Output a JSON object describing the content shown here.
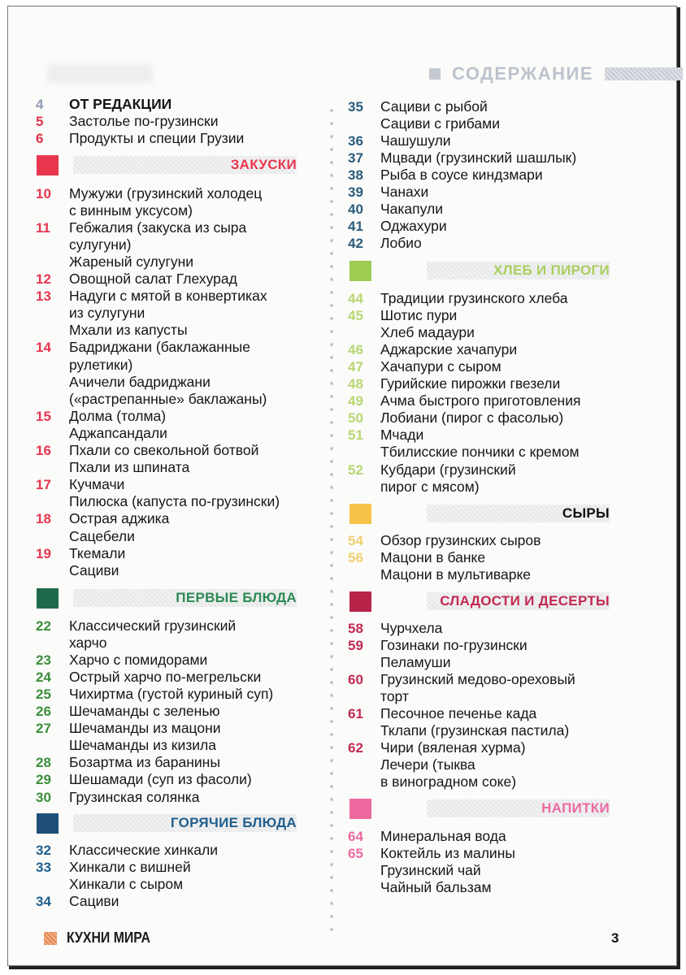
{
  "header": {
    "title": "СОДЕРЖАНИЕ"
  },
  "intro": [
    {
      "page": "4",
      "color": "#8e9bb0",
      "title": [
        "ОТ РЕДАКЦИИ"
      ],
      "bold": true
    },
    {
      "page": "5",
      "color": "#e2334a",
      "title": [
        "Застолье по-грузински"
      ]
    },
    {
      "page": "6",
      "color": "#e2334a",
      "title": [
        "Продукты и специи Грузии"
      ]
    }
  ],
  "left_sections": [
    {
      "heading": "ЗАКУСКИ",
      "color": "#e8364f",
      "heading_color": "#e8364f",
      "entries": [
        {
          "page": "10",
          "title": [
            "Мужужи (грузинский холодец",
            "с винным уксусом)"
          ]
        },
        {
          "page": "11",
          "title": [
            "Гебжалия (закуска из сыра",
            "сулугуни)"
          ]
        },
        {
          "page": "",
          "title": [
            "Жареный сулугуни"
          ]
        },
        {
          "page": "12",
          "title": [
            "Овощной салат Глехурад"
          ]
        },
        {
          "page": "13",
          "title": [
            "Надуги с мятой в конвертиках",
            "из сулугуни"
          ]
        },
        {
          "page": "",
          "title": [
            "Мхали из капусты"
          ]
        },
        {
          "page": "14",
          "title": [
            "Бадриджани (баклажанные",
            "рулетики)"
          ]
        },
        {
          "page": "",
          "title": [
            "Ачичели бадриджани",
            "(«растрепанные» баклажаны)"
          ]
        },
        {
          "page": "15",
          "title": [
            "Долма (толма)"
          ]
        },
        {
          "page": "",
          "title": [
            "Аджапсандали"
          ]
        },
        {
          "page": "16",
          "title": [
            "Пхали со свекольной ботвой"
          ]
        },
        {
          "page": "",
          "title": [
            "Пхали из шпината"
          ]
        },
        {
          "page": "17",
          "title": [
            "Кучмачи"
          ]
        },
        {
          "page": "",
          "title": [
            "Пилюска (капуста по-грузински)"
          ]
        },
        {
          "page": "18",
          "title": [
            "Острая аджика"
          ]
        },
        {
          "page": "",
          "title": [
            "Сацебели"
          ]
        },
        {
          "page": "19",
          "title": [
            "Ткемали"
          ]
        },
        {
          "page": "",
          "title": [
            "Сациви"
          ]
        }
      ]
    },
    {
      "heading": "ПЕРВЫЕ БЛЮДА",
      "color": "#1f6a4a",
      "heading_color": "#2d8a55",
      "num_color": "#3a8e3a",
      "entries": [
        {
          "page": "22",
          "title": [
            "Классический грузинский",
            "харчо"
          ]
        },
        {
          "page": "23",
          "title": [
            "Харчо с помидорами"
          ]
        },
        {
          "page": "24",
          "title": [
            "Острый харчо по-мегрельски"
          ]
        },
        {
          "page": "25",
          "title": [
            "Чихиртма (густой куриный суп)"
          ]
        },
        {
          "page": "26",
          "title": [
            "Шечаманды с зеленью"
          ]
        },
        {
          "page": "27",
          "title": [
            "Шечаманды из мацони"
          ]
        },
        {
          "page": "",
          "title": [
            "Шечаманды из кизила"
          ]
        },
        {
          "page": "28",
          "title": [
            "Бозартма из баранины"
          ]
        },
        {
          "page": "29",
          "title": [
            "Шешамади (суп из фасоли)"
          ]
        },
        {
          "page": "30",
          "title": [
            "Грузинская солянка"
          ]
        }
      ]
    },
    {
      "heading": "ГОРЯЧИЕ БЛЮДА",
      "color": "#1d4f78",
      "heading_color": "#1f5f8e",
      "num_color": "#1f5f8e",
      "entries": [
        {
          "page": "32",
          "title": [
            "Классические хинкали"
          ]
        },
        {
          "page": "33",
          "title": [
            "Хинкали с вишней"
          ]
        },
        {
          "page": "",
          "title": [
            "Хинкали с сыром"
          ]
        },
        {
          "page": "34",
          "title": [
            "Сациви"
          ]
        }
      ]
    }
  ],
  "right_continued": {
    "num_color": "#2b5c7c",
    "entries": [
      {
        "page": "35",
        "title": [
          "Сациви с рыбой"
        ]
      },
      {
        "page": "",
        "title": [
          "Сациви с грибами"
        ]
      },
      {
        "page": "36",
        "title": [
          "Чашушули"
        ]
      },
      {
        "page": "37",
        "title": [
          "Мцвади (грузинский шашлык)"
        ]
      },
      {
        "page": "38",
        "title": [
          "Рыба в соусе киндзмари"
        ]
      },
      {
        "page": "39",
        "title": [
          "Чанахи"
        ]
      },
      {
        "page": "40",
        "title": [
          "Чакапули"
        ]
      },
      {
        "page": "41",
        "title": [
          "Оджахури"
        ]
      },
      {
        "page": "42",
        "title": [
          "Лобио"
        ]
      }
    ]
  },
  "right_sections": [
    {
      "heading": "ХЛЕБ И ПИРОГИ",
      "color": "#9ccc52",
      "heading_color": "#a9cf5f",
      "num_color": "#b8d773",
      "entries": [
        {
          "page": "44",
          "title": [
            "Традиции грузинского хлеба"
          ]
        },
        {
          "page": "45",
          "title": [
            "Шотис пури"
          ]
        },
        {
          "page": "",
          "title": [
            "Хлеб мадаури"
          ]
        },
        {
          "page": "46",
          "title": [
            "Аджарские хачапури"
          ]
        },
        {
          "page": "47",
          "title": [
            "Хачапури с сыром"
          ]
        },
        {
          "page": "48",
          "title": [
            "Гурийские пирожки гвезели"
          ]
        },
        {
          "page": "49",
          "title": [
            "Ачма быстрого приготовления"
          ]
        },
        {
          "page": "50",
          "title": [
            "Лобиани (пирог с фасолью)"
          ]
        },
        {
          "page": "51",
          "title": [
            "Мчади"
          ]
        },
        {
          "page": "",
          "title": [
            "Тбилисские пончики с кремом"
          ]
        },
        {
          "page": "52",
          "title": [
            "Кубдари (грузинский",
            "пирог с мясом)"
          ]
        }
      ]
    },
    {
      "heading": "СЫРЫ",
      "color": "#f5c24a",
      "heading_color": "#111111",
      "num_color": "#f0d070",
      "entries": [
        {
          "page": "54",
          "title": [
            "Обзор грузинских сыров"
          ]
        },
        {
          "page": "56",
          "title": [
            "Мацони в банке"
          ]
        },
        {
          "page": "",
          "title": [
            "Мацони в мультиварке"
          ]
        }
      ]
    },
    {
      "heading": "СЛАДОСТИ И ДЕСЕРТЫ",
      "color": "#b8234a",
      "heading_color": "#c22a52",
      "num_color": "#c22a52",
      "entries": [
        {
          "page": "58",
          "title": [
            "Чурчхела"
          ]
        },
        {
          "page": "59",
          "title": [
            "Гозинаки по-грузински"
          ]
        },
        {
          "page": "",
          "title": [
            "Пеламуши"
          ]
        },
        {
          "page": "60",
          "title": [
            "Грузинский медово-ореховый",
            "торт"
          ]
        },
        {
          "page": "61",
          "title": [
            "Песочное печенье када"
          ]
        },
        {
          "page": "",
          "title": [
            "Тклапи (грузинская пастила)"
          ]
        },
        {
          "page": "62",
          "title": [
            "Чири (вяленая хурма)"
          ]
        },
        {
          "page": "",
          "title": [
            "Лечери (тыква",
            "в виноградном соке)"
          ]
        }
      ]
    },
    {
      "heading": "НАПИТКИ",
      "color": "#ee6a9e",
      "heading_color": "#ec6aa0",
      "num_color": "#ec6aa0",
      "entries": [
        {
          "page": "64",
          "title": [
            "Минеральная вода"
          ]
        },
        {
          "page": "65",
          "title": [
            "Коктейль из малины"
          ]
        },
        {
          "page": "",
          "title": [
            "Грузинский чай"
          ]
        },
        {
          "page": "",
          "title": [
            "Чайный бальзам"
          ]
        }
      ]
    }
  ],
  "footer": {
    "magazine": "КУХНИ МИРА",
    "page_number": "3"
  }
}
